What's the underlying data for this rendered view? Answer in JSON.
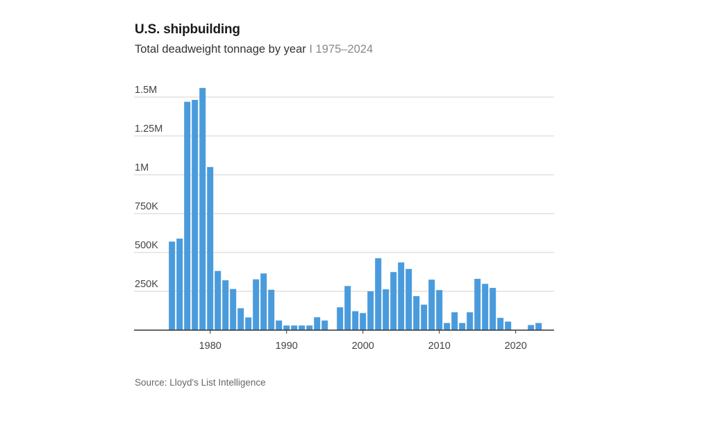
{
  "header": {
    "title": "U.S. shipbuilding",
    "subtitle_main": "Total deadweight tonnage by year",
    "subtitle_sep": "I",
    "subtitle_range": "1975–2024"
  },
  "footer": {
    "source": "Source: Lloyd's List Intelligence"
  },
  "colors": {
    "bar": "#4a9bdc",
    "grid": "#d9d9d9",
    "axis": "#333333"
  },
  "chart_data": {
    "type": "bar",
    "title": "U.S. shipbuilding",
    "subtitle": "Total deadweight tonnage by year | 1975–2024",
    "xlabel": "",
    "ylabel": "Deadweight tonnage",
    "ylim": [
      0,
      1500000
    ],
    "grid": true,
    "y_ticks": [
      {
        "value": 250000,
        "label": "250K"
      },
      {
        "value": 500000,
        "label": "500K"
      },
      {
        "value": 750000,
        "label": "750K"
      },
      {
        "value": 1000000,
        "label": "1M"
      },
      {
        "value": 1250000,
        "label": "1.25M"
      },
      {
        "value": 1500000,
        "label": "1.5M"
      }
    ],
    "x_ticks": [
      {
        "value": 1980,
        "label": "1980"
      },
      {
        "value": 1990,
        "label": "1990"
      },
      {
        "value": 2000,
        "label": "2000"
      },
      {
        "value": 2010,
        "label": "2010"
      },
      {
        "value": 2020,
        "label": "2020"
      }
    ],
    "x_range": [
      1975,
      2024
    ],
    "categories": [
      1975,
      1976,
      1977,
      1978,
      1979,
      1980,
      1981,
      1982,
      1983,
      1984,
      1985,
      1986,
      1987,
      1988,
      1989,
      1990,
      1991,
      1992,
      1993,
      1994,
      1995,
      1996,
      1997,
      1998,
      1999,
      2000,
      2001,
      2002,
      2003,
      2004,
      2005,
      2006,
      2007,
      2008,
      2009,
      2010,
      2011,
      2012,
      2013,
      2014,
      2015,
      2016,
      2017,
      2018,
      2019,
      2020,
      2021,
      2022,
      2023,
      2024
    ],
    "values": [
      570000,
      589000,
      1470000,
      1482000,
      1559000,
      1050000,
      381000,
      321000,
      265000,
      141000,
      82000,
      327000,
      365000,
      260000,
      62000,
      30000,
      30000,
      30000,
      30000,
      83000,
      62000,
      0,
      147000,
      284000,
      122000,
      110000,
      250000,
      463000,
      263000,
      374000,
      436000,
      394000,
      219000,
      164000,
      325000,
      258000,
      46000,
      115000,
      46000,
      115000,
      330000,
      298000,
      272000,
      79000,
      55000,
      0,
      0,
      33000,
      46000,
      0
    ],
    "source": "Source: Lloyd's List Intelligence"
  }
}
